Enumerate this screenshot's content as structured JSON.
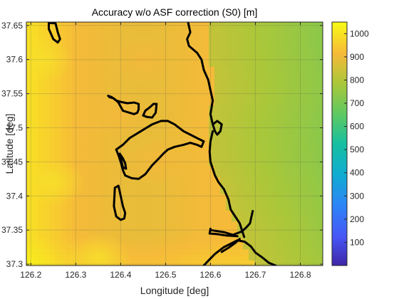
{
  "chart_data": {
    "type": "heatmap",
    "title": "Accuracy w/o ASF correction (S0) [m]",
    "xlabel": "Longitude [deg]",
    "ylabel": "Latitude [deg]",
    "xlim": [
      126.19,
      126.85
    ],
    "ylim": [
      37.298,
      37.655
    ],
    "xticks": [
      126.2,
      126.3,
      126.4,
      126.5,
      126.6,
      126.7,
      126.8
    ],
    "yticks": [
      37.3,
      37.35,
      37.4,
      37.45,
      37.5,
      37.55,
      37.6,
      37.65
    ],
    "xtick_labels": [
      "126.2",
      "126.3",
      "126.4",
      "126.5",
      "126.6",
      "126.7",
      "126.8"
    ],
    "ytick_labels": [
      "37.3",
      "37.35",
      "37.4",
      "37.45",
      "37.5",
      "37.55",
      "37.6",
      "37.65"
    ],
    "grid": true,
    "colorbar": {
      "clim": [
        0,
        1050
      ],
      "ticks": [
        100,
        200,
        300,
        400,
        500,
        600,
        700,
        800,
        900,
        1000
      ],
      "tick_labels": [
        "100",
        "200",
        "300",
        "400",
        "500",
        "600",
        "700",
        "800",
        "900",
        "1000"
      ],
      "colormap": "parula"
    },
    "field": {
      "description_values": "estimated accuracy values across the map",
      "coast_x_at_lat": [
        [
          37.655,
          126.59
        ],
        [
          37.6,
          126.6
        ],
        [
          37.55,
          126.61
        ],
        [
          37.5,
          126.59
        ],
        [
          37.45,
          126.6
        ],
        [
          37.4,
          126.63
        ],
        [
          37.35,
          126.66
        ],
        [
          37.298,
          126.7
        ]
      ],
      "land_value_range": [
        880,
        1040
      ],
      "sea_value_range": [
        720,
        820
      ],
      "hotspots": [
        {
          "lon": 126.45,
          "lat": 37.6,
          "value": 940
        },
        {
          "lon": 126.48,
          "lat": 37.45,
          "value": 930
        },
        {
          "lon": 126.4,
          "lat": 37.52,
          "value": 910
        },
        {
          "lon": 126.35,
          "lat": 37.31,
          "value": 1040
        },
        {
          "lon": 126.22,
          "lat": 37.6,
          "value": 1010
        },
        {
          "lon": 126.25,
          "lat": 37.42,
          "value": 990
        }
      ],
      "sea_gradient": [
        {
          "lon": 126.6,
          "value": 830
        },
        {
          "lon": 126.7,
          "value": 780
        },
        {
          "lon": 126.85,
          "value": 740
        }
      ]
    },
    "coastlines": [
      [
        [
          126.24,
          37.654
        ],
        [
          126.255,
          37.653
        ],
        [
          126.26,
          37.64
        ],
        [
          126.265,
          37.63
        ],
        [
          126.26,
          37.625
        ],
        [
          126.25,
          37.63
        ],
        [
          126.24,
          37.645
        ],
        [
          126.24,
          37.654
        ]
      ],
      [
        [
          126.55,
          37.655
        ],
        [
          126.555,
          37.64
        ],
        [
          126.548,
          37.63
        ],
        [
          126.552,
          37.62
        ],
        [
          126.57,
          37.61
        ],
        [
          126.58,
          37.6
        ],
        [
          126.585,
          37.585
        ],
        [
          126.595,
          37.57
        ],
        [
          126.6,
          37.555
        ],
        [
          126.605,
          37.54
        ],
        [
          126.6,
          37.52
        ],
        [
          126.605,
          37.505
        ],
        [
          126.61,
          37.495
        ],
        [
          126.615,
          37.49
        ],
        [
          126.622,
          37.495
        ],
        [
          126.625,
          37.505
        ],
        [
          126.615,
          37.51
        ],
        [
          126.605,
          37.505
        ]
      ],
      [
        [
          126.605,
          37.495
        ],
        [
          126.6,
          37.48
        ],
        [
          126.598,
          37.465
        ],
        [
          126.6,
          37.45
        ],
        [
          126.605,
          37.44
        ],
        [
          126.61,
          37.43
        ],
        [
          126.618,
          37.42
        ],
        [
          126.63,
          37.41
        ],
        [
          126.64,
          37.395
        ],
        [
          126.645,
          37.38
        ],
        [
          126.655,
          37.37
        ],
        [
          126.665,
          37.36
        ],
        [
          126.67,
          37.35
        ],
        [
          126.675,
          37.34
        ]
      ],
      [
        [
          126.6,
          37.35
        ],
        [
          126.63,
          37.347
        ],
        [
          126.65,
          37.343
        ],
        [
          126.67,
          37.348
        ],
        [
          126.68,
          37.354
        ],
        [
          126.688,
          37.36
        ],
        [
          126.692,
          37.372
        ],
        [
          126.694,
          37.378
        ]
      ],
      [
        [
          126.6,
          37.352
        ],
        [
          126.598,
          37.345
        ],
        [
          126.615,
          37.344
        ],
        [
          126.635,
          37.342
        ],
        [
          126.66,
          37.341
        ]
      ],
      [
        [
          126.66,
          37.335
        ],
        [
          126.676,
          37.333
        ],
        [
          126.69,
          37.326
        ],
        [
          126.7,
          37.317
        ],
        [
          126.715,
          37.31
        ],
        [
          126.73,
          37.302
        ],
        [
          126.745,
          37.298
        ]
      ],
      [
        [
          126.585,
          37.298
        ],
        [
          126.595,
          37.305
        ],
        [
          126.61,
          37.315
        ],
        [
          126.63,
          37.325
        ],
        [
          126.645,
          37.33
        ],
        [
          126.66,
          37.335
        ]
      ],
      [
        [
          126.625,
          37.318
        ],
        [
          126.64,
          37.324
        ],
        [
          126.655,
          37.331
        ],
        [
          126.665,
          37.337
        ]
      ],
      [
        [
          126.375,
          37.545
        ],
        [
          126.385,
          37.543
        ],
        [
          126.395,
          37.537
        ],
        [
          126.405,
          37.525
        ],
        [
          126.42,
          37.522
        ],
        [
          126.43,
          37.52
        ],
        [
          126.437,
          37.522
        ],
        [
          126.44,
          37.527
        ],
        [
          126.44,
          37.535
        ],
        [
          126.43,
          37.537
        ],
        [
          126.415,
          37.536
        ],
        [
          126.4,
          37.538
        ],
        [
          126.39,
          37.54
        ],
        [
          126.38,
          37.545
        ],
        [
          126.372,
          37.547
        ],
        [
          126.375,
          37.545
        ]
      ],
      [
        [
          126.47,
          37.515
        ],
        [
          126.478,
          37.522
        ],
        [
          126.48,
          37.535
        ],
        [
          126.473,
          37.535
        ],
        [
          126.465,
          37.53
        ],
        [
          126.455,
          37.525
        ],
        [
          126.45,
          37.518
        ],
        [
          126.458,
          37.516
        ],
        [
          126.47,
          37.515
        ]
      ],
      [
        [
          126.39,
          37.468
        ],
        [
          126.405,
          37.475
        ],
        [
          126.42,
          37.485
        ],
        [
          126.445,
          37.495
        ],
        [
          126.47,
          37.505
        ],
        [
          126.49,
          37.51
        ],
        [
          126.505,
          37.51
        ],
        [
          126.52,
          37.505
        ],
        [
          126.54,
          37.495
        ],
        [
          126.555,
          37.49
        ],
        [
          126.57,
          37.485
        ],
        [
          126.585,
          37.48
        ],
        [
          126.58,
          37.472
        ],
        [
          126.57,
          37.475
        ],
        [
          126.555,
          37.478
        ],
        [
          126.54,
          37.475
        ],
        [
          126.52,
          37.472
        ],
        [
          126.505,
          37.468
        ],
        [
          126.495,
          37.462
        ],
        [
          126.485,
          37.455
        ],
        [
          126.47,
          37.445
        ],
        [
          126.455,
          37.432
        ],
        [
          126.44,
          37.425
        ],
        [
          126.425,
          37.426
        ],
        [
          126.41,
          37.43
        ],
        [
          126.405,
          37.438
        ],
        [
          126.4,
          37.45
        ],
        [
          126.395,
          37.46
        ],
        [
          126.39,
          37.468
        ]
      ],
      [
        [
          126.387,
          37.412
        ],
        [
          126.395,
          37.415
        ],
        [
          126.4,
          37.4
        ],
        [
          126.405,
          37.385
        ],
        [
          126.41,
          37.375
        ],
        [
          126.408,
          37.367
        ],
        [
          126.4,
          37.365
        ],
        [
          126.39,
          37.37
        ],
        [
          126.385,
          37.385
        ],
        [
          126.387,
          37.412
        ]
      ],
      [
        [
          126.398,
          37.462
        ],
        [
          126.405,
          37.455
        ],
        [
          126.41,
          37.448
        ],
        [
          126.412,
          37.44
        ],
        [
          126.405,
          37.442
        ],
        [
          126.398,
          37.462
        ]
      ]
    ]
  }
}
